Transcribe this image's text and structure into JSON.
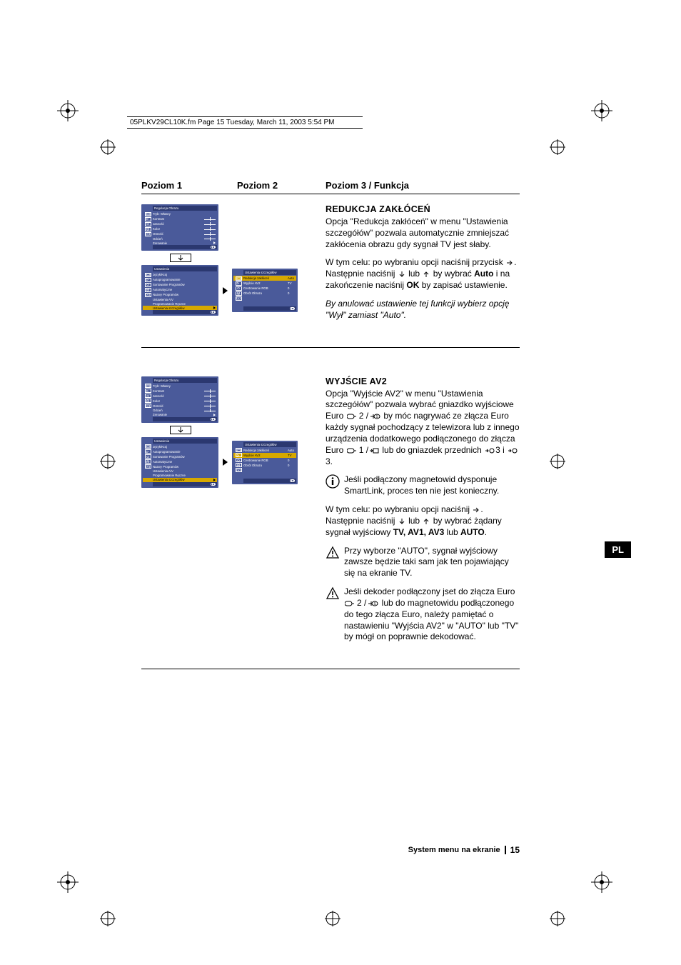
{
  "header_line": "05PLKV29CL10K.fm  Page 15  Tuesday, March 11, 2003  5:54 PM",
  "columns": {
    "c1": "Poziom 1",
    "c2": "Poziom 2",
    "c3": "Poziom 3 / Funkcja"
  },
  "lang_tab": "PL",
  "footer": {
    "text": "System menu na ekranie",
    "page": "15"
  },
  "menu_picture": {
    "title": "Regulacja Obrazu",
    "items": [
      {
        "label": "Tryb: Własny",
        "ctrl": "none"
      },
      {
        "label": "Kontrast",
        "ctrl": "slider"
      },
      {
        "label": "Jasność",
        "ctrl": "slider"
      },
      {
        "label": "Kolor",
        "ctrl": "slider"
      },
      {
        "label": "Ostrość",
        "ctrl": "slider"
      },
      {
        "label": "Odcień",
        "ctrl": "slider"
      },
      {
        "label": "Zerowanie",
        "ctrl": "arrow"
      }
    ]
  },
  "menu_setup": {
    "title": "Ustawienia",
    "items": [
      {
        "label": "Język/Kraj"
      },
      {
        "label": "Autoprogramowanie"
      },
      {
        "label": "Sortowanie Programów"
      },
      {
        "label": "Automatyczne"
      },
      {
        "label": "Nazwy Programów"
      },
      {
        "label": "Ustawienia A/V"
      },
      {
        "label": "Programowanie Ręczne"
      },
      {
        "label": "Ustawienia szczegółów"
      }
    ],
    "highlight_a": 7,
    "highlight_b": 7
  },
  "menu_detail": {
    "title": "Ustawienia szczegółów",
    "rows": [
      {
        "label": "Redukcja zakłóceń",
        "val": "Auto"
      },
      {
        "label": "Wyjście AV2",
        "val": "TV"
      },
      {
        "label": "Centrowanie RGB",
        "val": "0"
      },
      {
        "label": "Obrót Obrazu",
        "val": "0"
      }
    ],
    "highlight_sec1": 0,
    "highlight_sec2": 1
  },
  "section1": {
    "heading": "REDUKCJA  ZAKŁÓCEŃ",
    "p1": "Opcja \"Redukcja zakłóceń\"  w menu \"Ustawienia szczegółów\"  pozwala automatycznie zmniejszać  zakłócenia obrazu gdy sygnał TV jest słaby.",
    "p2a": "W tym celu: po wybraniu opcji  naciśnij przycisk ",
    "p2b": ". Następnie naciśnij ",
    "p2c": " lub ",
    "p2d": " by wybrać ",
    "p2e": "Auto",
    "p2f": " i na zakończenie naciśnij ",
    "p2g": "OK",
    "p2h": " by zapisać ustawienie.",
    "p3": "By anulować ustawienie tej funkcji  wybierz opcję \"Wył\" zamiast \"Auto\"."
  },
  "section2": {
    "heading": "WYJŚCIE  AV2",
    "p1a": "Opcja \"Wyjście AV2\" w menu \"Ustawienia szczegółów\"  pozwala wybrać gniazdko wyjściowe  Euro ",
    "p1b": "  by móc nagrywać ze złącza Euro każdy sygnał pochodzący z telewizora  lub z innego urządzenia dodatkowego  podłączonego do złącza Euro ",
    "p1c": " lub do gniazdek przednich ",
    "p1d": "3  i  ",
    "p1e": " 3.",
    "note1": "Jeśli podłączony magnetowid dysponuje SmartLink, proces ten nie jest konieczny.",
    "p2a": "W tym celu: po wybraniu opcji  naciśnij ",
    "p2b": ". Następnie naciśnij ",
    "p2c": " lub ",
    "p2d": " by wybrać żądany sygnał wyjściowy  ",
    "p2e": "TV, AV1, AV3",
    "p2f": " lub ",
    "p2g": "AUTO",
    "p2h": ".",
    "warn1": "Przy wyborze \"AUTO\",  sygnał wyjściowy zawsze będzie taki sam jak ten pojawiający się na  ekranie TV.",
    "warn2a": "Jeśli  dekoder podłączony jset do złącza Euro ",
    "warn2b": " lub do magnetowidu podłączonego do tego złącza Euro, należy pamiętać  o nastawieniu \"Wyjścia  AV2\" w \"AUTO\" lub  \"TV\"  by mógł on poprawnie dekodować."
  },
  "colors": {
    "menu_bg": "#4a5a9a",
    "menu_dark": "#2b3870",
    "highlight": "#d6a800"
  }
}
